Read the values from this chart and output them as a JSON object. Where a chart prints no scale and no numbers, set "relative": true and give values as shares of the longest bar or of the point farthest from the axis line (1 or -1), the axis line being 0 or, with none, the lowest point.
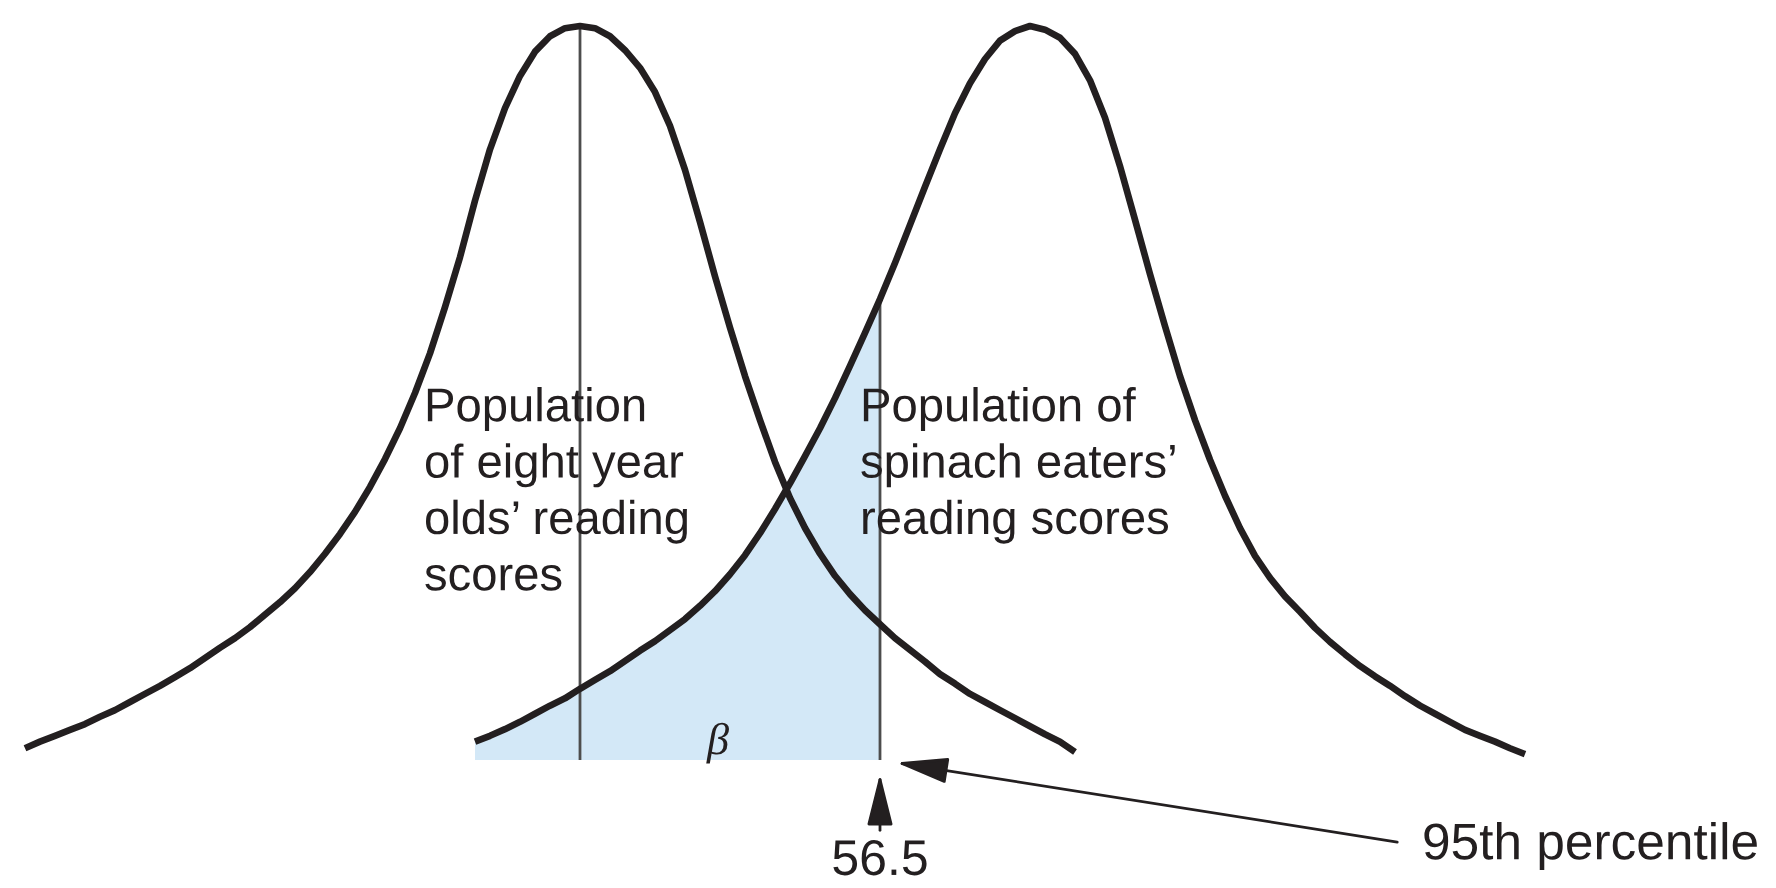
{
  "chart_data": {
    "type": "line",
    "relative": true,
    "categories": [
      null,
      null,
      null,
      null,
      null,
      null,
      null,
      null,
      null,
      null,
      null,
      null,
      null,
      null,
      null,
      null,
      null,
      null,
      null,
      null,
      null,
      null,
      null,
      null,
      null,
      null,
      null,
      null,
      null,
      null,
      null,
      null,
      null,
      null,
      null,
      null,
      null,
      null,
      null,
      null,
      null,
      null,
      null,
      null,
      null,
      null,
      null,
      null,
      null,
      null,
      null,
      null,
      null,
      null,
      null,
      null,
      null,
      null,
      null,
      null,
      null,
      null,
      null,
      null,
      null,
      null,
      null,
      null,
      null,
      null,
      null,
      null,
      null,
      null,
      null,
      null,
      null,
      null,
      null,
      null,
      null,
      null,
      null,
      null,
      null,
      null,
      null,
      null,
      null,
      null,
      null,
      null,
      null,
      null,
      null,
      null,
      null,
      null,
      null,
      null,
      null
    ],
    "series": [
      {
        "name": "Population\nof eight year\nolds’ reading\nscores",
        "color": "#231f20",
        "values": [
          0.016,
          0.025,
          0.033,
          0.041,
          0.049,
          0.059,
          0.068,
          0.079,
          0.09,
          0.101,
          0.113,
          0.125,
          0.139,
          0.153,
          0.166,
          0.181,
          0.198,
          0.215,
          0.234,
          0.256,
          0.281,
          0.308,
          0.338,
          0.372,
          0.41,
          0.452,
          0.5,
          0.554,
          0.617,
          0.685,
          0.762,
          0.832,
          0.888,
          0.932,
          0.965,
          0.986,
          0.997,
          1.0,
          0.997,
          0.986,
          0.967,
          0.943,
          0.91,
          0.864,
          0.804,
          0.733,
          0.659,
          0.589,
          0.523,
          0.463,
          0.406,
          0.357,
          0.316,
          0.281,
          0.251,
          0.226,
          0.204,
          0.185,
          0.166,
          0.15,
          0.134,
          0.117,
          0.104,
          0.09,
          0.079,
          0.068,
          0.057,
          0.046,
          0.035,
          0.025,
          0.011,
          null,
          null,
          null,
          null,
          null,
          null,
          null,
          null,
          null,
          null,
          null,
          null,
          null,
          null,
          null,
          null,
          null,
          null,
          null,
          null,
          null,
          null,
          null,
          null,
          null,
          null,
          null,
          null,
          null,
          null
        ]
      },
      {
        "name": "Population of\nspinach eaters’\nreading scores",
        "color": "#231f20",
        "values": [
          null,
          null,
          null,
          null,
          null,
          null,
          null,
          null,
          null,
          null,
          null,
          null,
          null,
          null,
          null,
          null,
          null,
          null,
          null,
          null,
          null,
          null,
          null,
          null,
          null,
          null,
          null,
          null,
          null,
          null,
          0.025,
          0.033,
          0.042,
          0.052,
          0.063,
          0.074,
          0.084,
          0.097,
          0.109,
          0.121,
          0.135,
          0.149,
          0.162,
          0.177,
          0.192,
          0.21,
          0.23,
          0.253,
          0.279,
          0.309,
          0.342,
          0.377,
          0.414,
          0.452,
          0.493,
          0.537,
          0.582,
          0.628,
          0.677,
          0.729,
          0.781,
          0.832,
          0.881,
          0.922,
          0.955,
          0.98,
          0.993,
          1.0,
          0.995,
          0.984,
          0.962,
          0.926,
          0.875,
          0.809,
          0.736,
          0.662,
          0.591,
          0.523,
          0.463,
          0.409,
          0.36,
          0.316,
          0.278,
          0.248,
          0.223,
          0.202,
          0.18,
          0.161,
          0.144,
          0.128,
          0.114,
          0.101,
          0.087,
          0.074,
          0.063,
          0.052,
          0.041,
          0.033,
          0.025,
          0.016,
          0.008
        ]
      },
      {
        "name": "β",
        "type": "area",
        "color": "#d3e8f7",
        "values": [
          null,
          null,
          null,
          null,
          null,
          null,
          null,
          null,
          null,
          null,
          null,
          null,
          null,
          null,
          null,
          null,
          null,
          null,
          null,
          null,
          null,
          null,
          null,
          null,
          null,
          null,
          null,
          null,
          null,
          null,
          0.025,
          0.033,
          0.042,
          0.052,
          0.063,
          0.074,
          0.084,
          0.097,
          0.109,
          0.121,
          0.135,
          0.149,
          0.162,
          0.177,
          0.192,
          0.21,
          0.23,
          0.253,
          0.279,
          0.309,
          0.342,
          0.377,
          0.414,
          0.452,
          0.493,
          0.537,
          0.582,
          0.628,
          null,
          null,
          null,
          null,
          null,
          null,
          null,
          null,
          null,
          null,
          null,
          null,
          null,
          null,
          null,
          null,
          null,
          null,
          null,
          null,
          null,
          null,
          null,
          null,
          null,
          null,
          null,
          null,
          null,
          null,
          null,
          null,
          null,
          null,
          null,
          null,
          null,
          null,
          null,
          null,
          null,
          null,
          null
        ]
      }
    ],
    "annotations": [
      {
        "text": "56.5",
        "y": 0
      },
      "95th percentile"
    ]
  }
}
